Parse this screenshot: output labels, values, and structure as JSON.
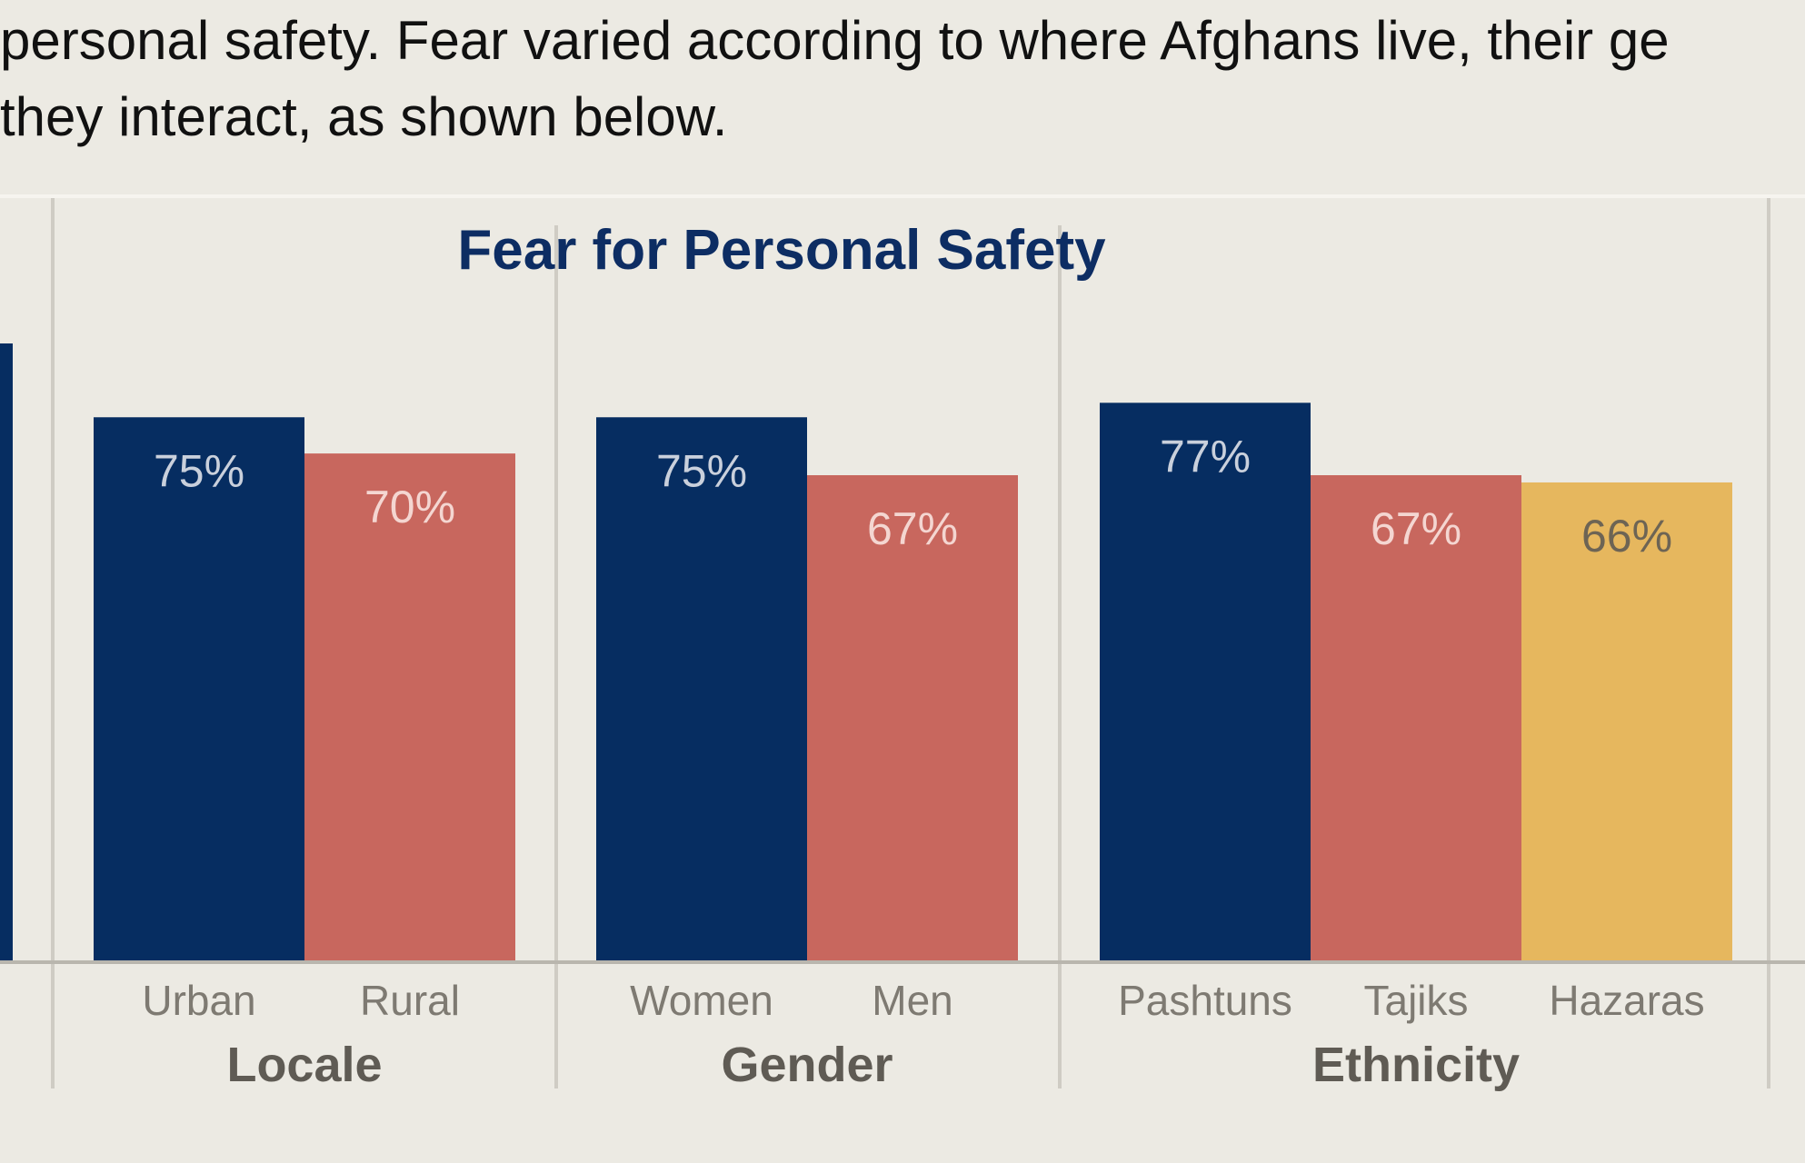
{
  "intro": {
    "line1": "personal safety. Fear varied according to where Afghans live, their ge",
    "line2": "they interact, as shown below."
  },
  "chart_data": {
    "type": "bar",
    "title": "Fear for Personal Safety",
    "ylim": [
      0,
      100
    ],
    "grid": false,
    "groups": [
      {
        "name": "Locale",
        "categories": [
          "Urban",
          "Rural"
        ],
        "values": [
          75,
          70
        ],
        "labels": [
          "75%",
          "70%"
        ],
        "colors": [
          "#062d61",
          "#c8675e"
        ]
      },
      {
        "name": "Gender",
        "categories": [
          "Women",
          "Men"
        ],
        "values": [
          75,
          67
        ],
        "labels": [
          "75%",
          "67%"
        ],
        "colors": [
          "#062d61",
          "#c8675e"
        ]
      },
      {
        "name": "Ethnicity",
        "categories": [
          "Pashtuns",
          "Tajiks",
          "Hazaras"
        ],
        "values": [
          77,
          67,
          66
        ],
        "labels": [
          "77%",
          "67%",
          "66%"
        ],
        "colors": [
          "#062d61",
          "#c8675e",
          "#e6b75e"
        ]
      }
    ]
  },
  "colors": {
    "title": "#0d2d63",
    "label_on_dark": "#c9d0dc",
    "label_on_red": "#f4d6d1",
    "label_on_yellow": "#6d6454",
    "category_text": "#7e7a72",
    "group_text": "#5f5b54",
    "divider": "#cfccc4",
    "baseline": "#b9b6ae"
  }
}
